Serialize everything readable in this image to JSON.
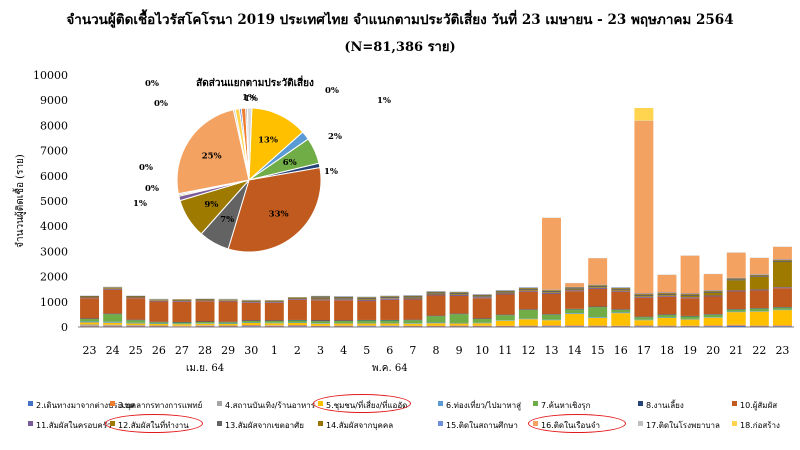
{
  "title": "จำนวนผู้ติดเชื้อไวรัสโคโรนา 2019 ประเทศไทย จำแนกตามประวัติเสี่ยง วันที่ 23 เมษายน - 23 พฤษภาคม 2564",
  "subtitle": "(N=81,386 ราย)",
  "highlight_color": "#e31a1c",
  "chart_data": [
    {
      "type": "bar",
      "stacked": true,
      "ylabel": "จำนวนผู้ติดเชื้อ (ราย)",
      "ylim": [
        0,
        10000
      ],
      "yticks": [
        0,
        1000,
        2000,
        3000,
        4000,
        5000,
        6000,
        7000,
        8000,
        9000,
        10000
      ],
      "grid": false,
      "legend_position": "bottom",
      "categories": [
        "23",
        "24",
        "25",
        "26",
        "27",
        "28",
        "29",
        "30",
        "1",
        "2",
        "3",
        "4",
        "5",
        "6",
        "7",
        "8",
        "9",
        "10",
        "11",
        "12",
        "13",
        "14",
        "15",
        "16",
        "17",
        "18",
        "19",
        "20",
        "21",
        "22",
        "23"
      ],
      "month_labels": [
        {
          "label": "เม.ย. 64",
          "after_index": 5
        },
        {
          "label": "พ.ค. 64",
          "after_index": 13
        }
      ],
      "series": [
        {
          "name": "2.เดินทางมาจากต่างประเทศ",
          "color": "#4472c4",
          "values": [
            20,
            20,
            20,
            20,
            10,
            20,
            20,
            30,
            20,
            30,
            20,
            20,
            30,
            30,
            20,
            20,
            20,
            20,
            20,
            20,
            30,
            30,
            20,
            20,
            30,
            20,
            20,
            30,
            50,
            20,
            30
          ]
        },
        {
          "name": "3.บุคลากรทางการแพทย์",
          "color": "#ed7d31",
          "values": [
            30,
            30,
            30,
            20,
            20,
            30,
            20,
            30,
            30,
            30,
            20,
            30,
            20,
            20,
            20,
            20,
            30,
            20,
            20,
            30,
            30,
            30,
            30,
            20,
            30,
            30,
            20,
            30,
            30,
            30,
            30
          ]
        },
        {
          "name": "4.สถานบันเทิง/ร้านอาหาร",
          "color": "#a5a5a5",
          "values": [
            50,
            40,
            30,
            20,
            20,
            20,
            20,
            20,
            20,
            20,
            10,
            10,
            10,
            10,
            10,
            10,
            10,
            10,
            10,
            10,
            10,
            10,
            10,
            10,
            10,
            10,
            10,
            10,
            10,
            10,
            10
          ]
        },
        {
          "name": "5.ชุมชน/ที่เสี่ยง/ที่แออัด",
          "color": "#ffc000",
          "values": [
            80,
            80,
            60,
            60,
            60,
            60,
            60,
            80,
            80,
            80,
            80,
            80,
            80,
            80,
            80,
            100,
            80,
            100,
            200,
            250,
            200,
            450,
            300,
            500,
            200,
            300,
            250,
            300,
            500,
            550,
            600
          ]
        },
        {
          "name": "6.ท่องเที่ยว/ไปมาหาสู่",
          "color": "#5b9bd5",
          "values": [
            40,
            40,
            30,
            20,
            20,
            20,
            20,
            20,
            20,
            20,
            20,
            20,
            20,
            20,
            20,
            30,
            20,
            20,
            20,
            20,
            20,
            30,
            30,
            30,
            20,
            20,
            20,
            20,
            20,
            20,
            20
          ]
        },
        {
          "name": "7.ค้นหาเชิงรุก",
          "color": "#70ad47",
          "values": [
            100,
            300,
            100,
            50,
            50,
            50,
            50,
            60,
            70,
            80,
            80,
            80,
            100,
            100,
            120,
            250,
            350,
            150,
            200,
            350,
            200,
            150,
            400,
            100,
            100,
            100,
            100,
            100,
            80,
            100,
            80
          ]
        },
        {
          "name": "8.งานเลี้ยง",
          "color": "#264478",
          "values": [
            20,
            20,
            20,
            20,
            20,
            20,
            20,
            20,
            20,
            20,
            30,
            20,
            20,
            20,
            20,
            20,
            20,
            20,
            20,
            20,
            20,
            20,
            20,
            20,
            20,
            20,
            20,
            20,
            20,
            20,
            20
          ]
        },
        {
          "name": "10.ผู้สัมผัส",
          "color": "#c05a1e",
          "values": [
            800,
            950,
            850,
            800,
            800,
            800,
            800,
            700,
            700,
            800,
            800,
            800,
            750,
            800,
            800,
            800,
            700,
            800,
            800,
            700,
            800,
            700,
            700,
            700,
            750,
            700,
            700,
            700,
            700,
            700,
            750
          ]
        },
        {
          "name": "11.สัมผัสในครอบครัว",
          "color": "#7a5c99",
          "values": [
            30,
            30,
            30,
            30,
            30,
            30,
            30,
            30,
            30,
            30,
            40,
            40,
            40,
            40,
            40,
            40,
            40,
            40,
            40,
            40,
            40,
            40,
            40,
            40,
            40,
            40,
            40,
            40,
            40,
            40,
            40
          ]
        },
        {
          "name": "12.สัมผัสในที่ทำงาน",
          "color": "#9e7b00",
          "values": [
            20,
            30,
            20,
            20,
            20,
            20,
            20,
            20,
            20,
            20,
            30,
            20,
            30,
            20,
            30,
            30,
            30,
            20,
            30,
            30,
            30,
            30,
            30,
            30,
            30,
            30,
            50,
            100,
            400,
            500,
            1000
          ]
        },
        {
          "name": "13.สัมผัสจากเขตอาศัย",
          "color": "#636363",
          "values": [
            20,
            20,
            20,
            20,
            20,
            20,
            20,
            30,
            20,
            20,
            50,
            50,
            50,
            50,
            50,
            50,
            50,
            50,
            50,
            50,
            50,
            50,
            50,
            50,
            50,
            50,
            50,
            50,
            50,
            50,
            50
          ]
        },
        {
          "name": "14.สัมผัสจากบุคคล",
          "color": "#997300",
          "values": [
            20,
            20,
            20,
            20,
            20,
            20,
            20,
            20,
            20,
            20,
            30,
            30,
            30,
            30,
            30,
            30,
            30,
            30,
            30,
            30,
            30,
            30,
            30,
            30,
            30,
            30,
            30,
            30,
            30,
            30,
            30
          ]
        },
        {
          "name": "15.ติดในสถานศึกษา",
          "color": "#6f8fd8",
          "values": [
            10,
            10,
            10,
            10,
            10,
            10,
            10,
            10,
            10,
            10,
            20,
            20,
            20,
            20,
            20,
            20,
            20,
            20,
            20,
            20,
            20,
            20,
            20,
            20,
            20,
            20,
            20,
            20,
            20,
            20,
            20
          ]
        },
        {
          "name": "16.ติดในเรือนจำ",
          "color": "#f4a261",
          "values": [
            0,
            0,
            0,
            0,
            0,
            0,
            0,
            0,
            0,
            0,
            0,
            0,
            0,
            0,
            0,
            0,
            0,
            0,
            0,
            0,
            2850,
            150,
            1050,
            0,
            6850,
            700,
            1500,
            650,
            1000,
            650,
            500
          ]
        },
        {
          "name": "17.ติดในโรงพยาบาล",
          "color": "#bfbfbf",
          "values": [
            10,
            10,
            10,
            10,
            10,
            10,
            10,
            10,
            10,
            10,
            10,
            10,
            10,
            10,
            10,
            10,
            10,
            10,
            10,
            10,
            10,
            10,
            10,
            10,
            10,
            10,
            10,
            10,
            10,
            10,
            10
          ]
        },
        {
          "name": "18.ก่อสร้าง",
          "color": "#ffd54f",
          "values": [
            0,
            0,
            0,
            0,
            0,
            0,
            0,
            0,
            0,
            0,
            0,
            0,
            0,
            0,
            0,
            0,
            0,
            0,
            0,
            0,
            0,
            0,
            0,
            0,
            500,
            0,
            0,
            0,
            0,
            0,
            0
          ]
        }
      ]
    },
    {
      "type": "pie",
      "title": "สัดส่วนแยกตามประวัติเสี่ยง",
      "slices": [
        {
          "label": "13%",
          "value": 13,
          "color": "#ffc000"
        },
        {
          "label": "2%",
          "value": 2,
          "color": "#5b9bd5"
        },
        {
          "label": "6%",
          "value": 6,
          "color": "#70ad47"
        },
        {
          "label": "1%",
          "value": 1,
          "color": "#264478"
        },
        {
          "label": "33%",
          "value": 33,
          "color": "#c05a1e"
        },
        {
          "label": "7%",
          "value": 7,
          "color": "#636363"
        },
        {
          "label": "9%",
          "value": 9,
          "color": "#9e7b00"
        },
        {
          "label": "1%",
          "value": 1,
          "color": "#7a5c99"
        },
        {
          "label": "0%",
          "value": 0.3,
          "color": "#997300"
        },
        {
          "label": "0%",
          "value": 0.3,
          "color": "#6f8fd8"
        },
        {
          "label": "25%",
          "value": 25,
          "color": "#f4a261"
        },
        {
          "label": "0%",
          "value": 0.4,
          "color": "#bfbfbf"
        },
        {
          "label": "1%",
          "value": 1,
          "color": "#ffd54f"
        },
        {
          "label": "0%",
          "value": 0.4,
          "color": "#4472c4"
        },
        {
          "label": "1%",
          "value": 1,
          "color": "#ed7d31"
        },
        {
          "label": "0%",
          "value": 0.4,
          "color": "#a5a5a5"
        },
        {
          "label": "1%",
          "value": 1,
          "color": "#d9d9d9"
        }
      ]
    }
  ],
  "legend_highlighted": [
    "5.ชุมชน/ที่เสี่ยง/ที่แออัด",
    "12.สัมผัสในที่ทำงาน",
    "16.ติดในเรือนจำ"
  ]
}
